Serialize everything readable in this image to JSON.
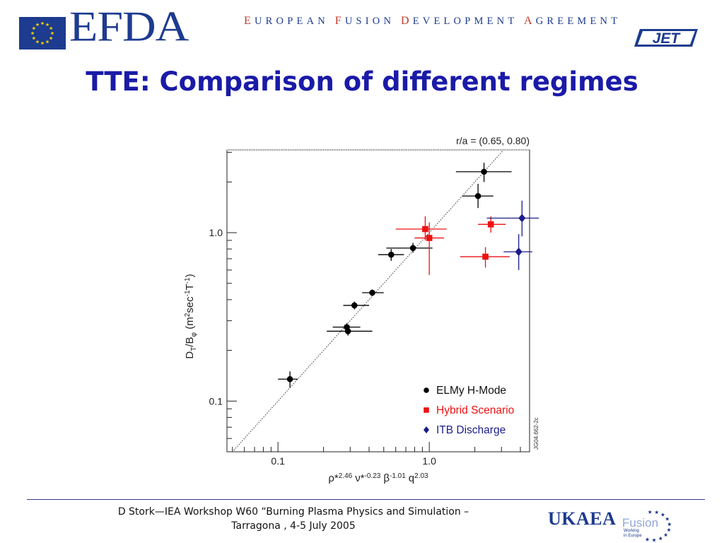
{
  "header": {
    "logo_text": "EFDA",
    "full_name_parts": [
      {
        "cap": "E",
        "rest": "UROPEAN"
      },
      {
        "cap": "F",
        "rest": "USION"
      },
      {
        "cap": "D",
        "rest": "EVELOPMENT"
      },
      {
        "cap": "A",
        "rest": "GREEMENT"
      }
    ],
    "jet_logo": "JET"
  },
  "title": "TTE: Comparison of different regimes",
  "colors": {
    "title": "#1a1aa8",
    "brand": "#1d3b8f",
    "elmy": "#000000",
    "hybrid": "#ee1111",
    "itb": "#1c1c8a"
  },
  "chart_data": {
    "type": "scatter",
    "x_scale": "log",
    "y_scale": "log",
    "xlim": [
      0.046,
      4.6
    ],
    "ylim": [
      0.05,
      3.1
    ],
    "xlabel": "ρ*2.46 ν*-0.23 β-1.01 q2.03",
    "ylabel": "DT/Bφ (m2sec-1T-1)",
    "x_ticks": [
      {
        "v": 0.1,
        "label": "0.1"
      },
      {
        "v": 1.0,
        "label": "1.0"
      }
    ],
    "y_ticks": [
      {
        "v": 0.1,
        "label": "0.1"
      },
      {
        "v": 1.0,
        "label": "1.0"
      }
    ],
    "annotation": "r/a = (0.65, 0.80)",
    "side_note": "JG04.662-2c",
    "reference_line": {
      "style": "dotted",
      "slope": 1,
      "through": [
        1.0,
        1.0
      ]
    },
    "legend": {
      "placement": "bottom-right"
    },
    "series": [
      {
        "name": "ELMy H-Mode",
        "color": "#000000",
        "marker": "circle",
        "points": [
          {
            "x": 2.3,
            "y": 2.3,
            "xerr": [
              1.5,
              3.5
            ],
            "yerr": [
              2.0,
              2.6
            ]
          },
          {
            "x": 2.1,
            "y": 1.65,
            "xerr": [
              1.65,
              2.65
            ],
            "yerr": [
              1.4,
              1.95
            ]
          },
          {
            "x": 0.78,
            "y": 0.81,
            "xerr": [
              0.52,
              1.05
            ],
            "yerr": [
              0.76,
              0.87
            ]
          },
          {
            "x": 0.56,
            "y": 0.74,
            "xerr": [
              0.46,
              0.68
            ],
            "yerr": [
              0.68,
              0.8
            ]
          },
          {
            "x": 0.42,
            "y": 0.44,
            "xerr": [
              0.36,
              0.5
            ],
            "yerr": [
              0.42,
              0.46
            ]
          },
          {
            "x": 0.32,
            "y": 0.37,
            "xerr": [
              0.27,
              0.4
            ],
            "yerr": [
              0.35,
              0.39
            ]
          },
          {
            "x": 0.285,
            "y": 0.275,
            "xerr": [
              0.23,
              0.35
            ],
            "yerr": [
              0.26,
              0.29
            ]
          },
          {
            "x": 0.29,
            "y": 0.26,
            "xerr": [
              0.21,
              0.42
            ],
            "yerr": [
              0.245,
              0.275
            ]
          },
          {
            "x": 0.12,
            "y": 0.135,
            "xerr": [
              0.1,
              0.135
            ],
            "yerr": [
              0.12,
              0.15
            ]
          }
        ]
      },
      {
        "name": "Hybrid Scenario",
        "color": "#ee1111",
        "marker": "square",
        "points": [
          {
            "x": 0.94,
            "y": 1.05,
            "xerr": [
              0.6,
              1.3
            ],
            "yerr": [
              0.9,
              1.25
            ]
          },
          {
            "x": 1.0,
            "y": 0.93,
            "xerr": [
              0.8,
              1.25
            ],
            "yerr": [
              0.56,
              1.15
            ]
          },
          {
            "x": 2.55,
            "y": 1.12,
            "xerr": [
              2.1,
              3.2
            ],
            "yerr": [
              1.0,
              1.25
            ]
          },
          {
            "x": 2.35,
            "y": 0.72,
            "xerr": [
              1.6,
              3.4
            ],
            "yerr": [
              0.62,
              0.82
            ]
          }
        ]
      },
      {
        "name": "ITB Discharge",
        "color": "#1c1c8a",
        "marker": "diamond",
        "points": [
          {
            "x": 4.1,
            "y": 1.22,
            "xerr": [
              2.4,
              5.3
            ],
            "yerr": [
              0.95,
              1.55
            ]
          },
          {
            "x": 3.9,
            "y": 0.77,
            "xerr": [
              3.1,
              4.8
            ],
            "yerr": [
              0.6,
              0.98
            ]
          }
        ]
      }
    ]
  },
  "footer": {
    "line1": "D Stork—IEA Workshop W60 “Burning Plasma Physics and Simulation –",
    "line2": "Tarragona , 4-5 July 2005",
    "ukaea": "UKAEA",
    "fusion": "Fusion",
    "fusion_sub1": "Working",
    "fusion_sub2": "in Europe"
  }
}
